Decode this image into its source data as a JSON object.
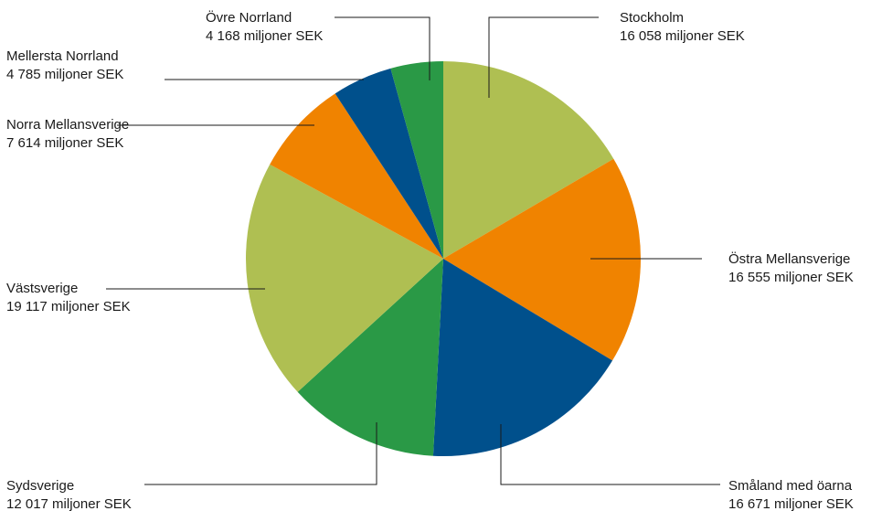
{
  "chart_data": {
    "type": "pie",
    "unit": "miljoner SEK",
    "slices": [
      {
        "name": "Stockholm",
        "value": 16058,
        "value_label": "16 058 miljoner SEK",
        "color": "#afbf52"
      },
      {
        "name": "Östra Mellansverige",
        "value": 16555,
        "value_label": "16 555 miljoner SEK",
        "color": "#f08300"
      },
      {
        "name": "Småland med öarna",
        "value": 16671,
        "value_label": "16 671 miljoner SEK",
        "color": "#00508c"
      },
      {
        "name": "Sydsverige",
        "value": 12017,
        "value_label": "12 017 miljoner SEK",
        "color": "#2a9946"
      },
      {
        "name": "Västsverige",
        "value": 19117,
        "value_label": "19 117 miljoner SEK",
        "color": "#afbf52"
      },
      {
        "name": "Norra Mellansverige",
        "value": 7614,
        "value_label": "7 614 miljoner SEK",
        "color": "#f08300"
      },
      {
        "name": "Mellersta Norrland",
        "value": 4785,
        "value_label": "4 785 miljoner SEK",
        "color": "#00508c"
      },
      {
        "name": "Övre Norrland",
        "value": 4168,
        "value_label": "4 168 miljoner SEK",
        "color": "#2a9946"
      }
    ]
  }
}
